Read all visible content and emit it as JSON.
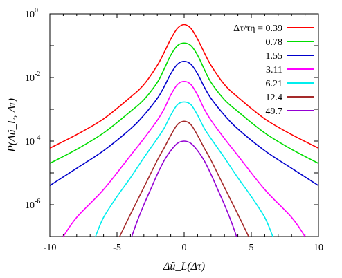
{
  "chart_data": {
    "type": "line",
    "xlabel": "Δũ_L(Δτ)",
    "ylabel": "P(Δũ_L, Δτ)",
    "xlim": [
      -10,
      10
    ],
    "ylim_log10": [
      -7,
      0
    ],
    "y_scale": "log",
    "x_ticks": [
      {
        "value": -10,
        "label": "-10"
      },
      {
        "value": -5,
        "label": "-5"
      },
      {
        "value": 0,
        "label": "0"
      },
      {
        "value": 5,
        "label": "5"
      },
      {
        "value": 10,
        "label": "10"
      }
    ],
    "y_ticks": [
      {
        "exp": 0,
        "label": "10",
        "sup": "0"
      },
      {
        "exp": -2,
        "label": "10",
        "sup": "-2"
      },
      {
        "exp": -4,
        "label": "10",
        "sup": "-4"
      },
      {
        "exp": -6,
        "label": "10",
        "sup": "-6"
      }
    ],
    "legend": {
      "title": "Δτ/τη =",
      "placement": "top-right"
    },
    "series": [
      {
        "name": "0.39",
        "color": "#ff0000",
        "x": [
          -10,
          -8,
          -6,
          -4,
          -3,
          -2,
          -1.5,
          -1,
          -0.5,
          0,
          0.5,
          1,
          1.5,
          2,
          3,
          4,
          6,
          8,
          10
        ],
        "y": [
          6e-05,
          0.00016,
          0.0005,
          0.0024,
          0.006,
          0.024,
          0.06,
          0.16,
          0.35,
          0.46,
          0.35,
          0.16,
          0.06,
          0.024,
          0.006,
          0.0024,
          0.0005,
          0.00016,
          6e-05
        ]
      },
      {
        "name": "0.78",
        "color": "#00dd00",
        "x": [
          -10,
          -8,
          -6,
          -4,
          -3,
          -2,
          -1.5,
          -1,
          -0.5,
          0,
          0.5,
          1,
          1.5,
          2,
          3,
          4,
          6,
          8,
          10
        ],
        "y": [
          2e-05,
          5.5e-05,
          0.00018,
          0.00085,
          0.002,
          0.007,
          0.018,
          0.05,
          0.1,
          0.12,
          0.1,
          0.05,
          0.018,
          0.007,
          0.002,
          0.00085,
          0.00018,
          5.5e-05,
          2e-05
        ]
      },
      {
        "name": "1.55",
        "color": "#0000cc",
        "x": [
          -10,
          -8,
          -6,
          -4,
          -3,
          -2,
          -1.5,
          -1,
          -0.5,
          0,
          0.5,
          1,
          1.5,
          2,
          3,
          4,
          6,
          8,
          10
        ],
        "y": [
          4e-06,
          1.4e-05,
          5e-05,
          0.00024,
          0.00065,
          0.0022,
          0.005,
          0.013,
          0.026,
          0.032,
          0.026,
          0.013,
          0.005,
          0.0022,
          0.00065,
          0.00024,
          5e-05,
          1.4e-05,
          4e-06
        ]
      },
      {
        "name": "3.11",
        "color": "#ff00ff",
        "x": [
          -9.0,
          -8,
          -6,
          -4,
          -3,
          -2,
          -1.5,
          -1,
          -0.5,
          0,
          0.5,
          1,
          1.5,
          2,
          3,
          4,
          6,
          8,
          9.0
        ],
        "y": [
          1e-07,
          4e-07,
          3e-06,
          3.5e-05,
          0.00012,
          0.00045,
          0.001,
          0.0028,
          0.006,
          0.0075,
          0.006,
          0.0028,
          0.001,
          0.00045,
          0.00012,
          3.5e-05,
          3e-06,
          4e-07,
          1e-07
        ]
      },
      {
        "name": "6.21",
        "color": "#00eeee",
        "x": [
          -6.6,
          -6,
          -5,
          -4,
          -3,
          -2,
          -1.5,
          -1,
          -0.5,
          0,
          0.5,
          1,
          1.5,
          2,
          3,
          4,
          5,
          6,
          6.6
        ],
        "y": [
          1e-07,
          4e-07,
          1.8e-06,
          7e-06,
          3e-05,
          0.00012,
          0.00025,
          0.00065,
          0.0014,
          0.0017,
          0.0014,
          0.00065,
          0.00025,
          0.00012,
          3e-05,
          7e-06,
          1.8e-06,
          4e-07,
          1e-07
        ]
      },
      {
        "name": "12.4",
        "color": "#a52a2a",
        "x": [
          -4.8,
          -4,
          -3,
          -2,
          -1.5,
          -1,
          -0.5,
          0,
          0.5,
          1,
          1.5,
          2,
          3,
          4,
          4.8
        ],
        "y": [
          1e-07,
          5e-07,
          3.5e-06,
          2.5e-05,
          6e-05,
          0.00015,
          0.00033,
          0.00042,
          0.00033,
          0.00015,
          6e-05,
          2.5e-05,
          3.5e-06,
          5e-07,
          1e-07
        ]
      },
      {
        "name": "49.7",
        "color": "#9400d3",
        "x": [
          -3.9,
          -3.5,
          -3,
          -2.5,
          -2,
          -1.5,
          -1,
          -0.5,
          0,
          0.5,
          1,
          1.5,
          2,
          2.5,
          3,
          3.5,
          3.9
        ],
        "y": [
          1e-07,
          3e-07,
          1e-06,
          3e-06,
          9e-06,
          2.4e-05,
          5e-05,
          8.5e-05,
          0.0001,
          8.5e-05,
          5e-05,
          2.4e-05,
          9e-06,
          3e-06,
          1e-06,
          3e-07,
          1e-07
        ]
      }
    ]
  }
}
